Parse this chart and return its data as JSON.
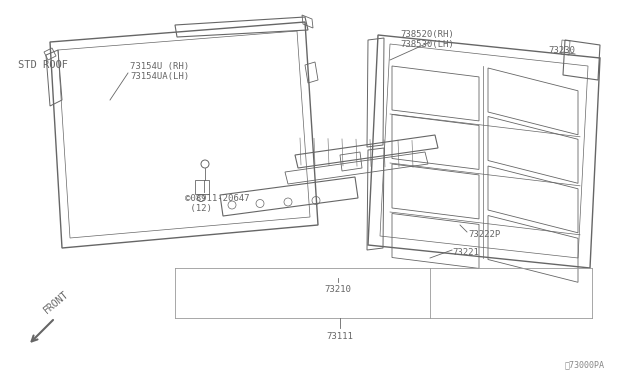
{
  "bg_color": "#ffffff",
  "line_color": "#666666",
  "text_color": "#666666",
  "fig_width": 6.4,
  "fig_height": 3.72,
  "labels": {
    "std_roof": "STD ROOF",
    "part_73154U": "73154U (RH)",
    "part_73154UA": "73154UA(LH)",
    "part_08911": "©08911-20647\n (12)",
    "part_73111": "73111",
    "part_73210": "73210",
    "part_73221": "73221",
    "part_73222P": "73222P",
    "part_73230": "73230",
    "part_738520": "738520(RH)",
    "part_738530": "738530(LH)",
    "part_id": "ⅳ73000PA",
    "front": "FRONT"
  }
}
